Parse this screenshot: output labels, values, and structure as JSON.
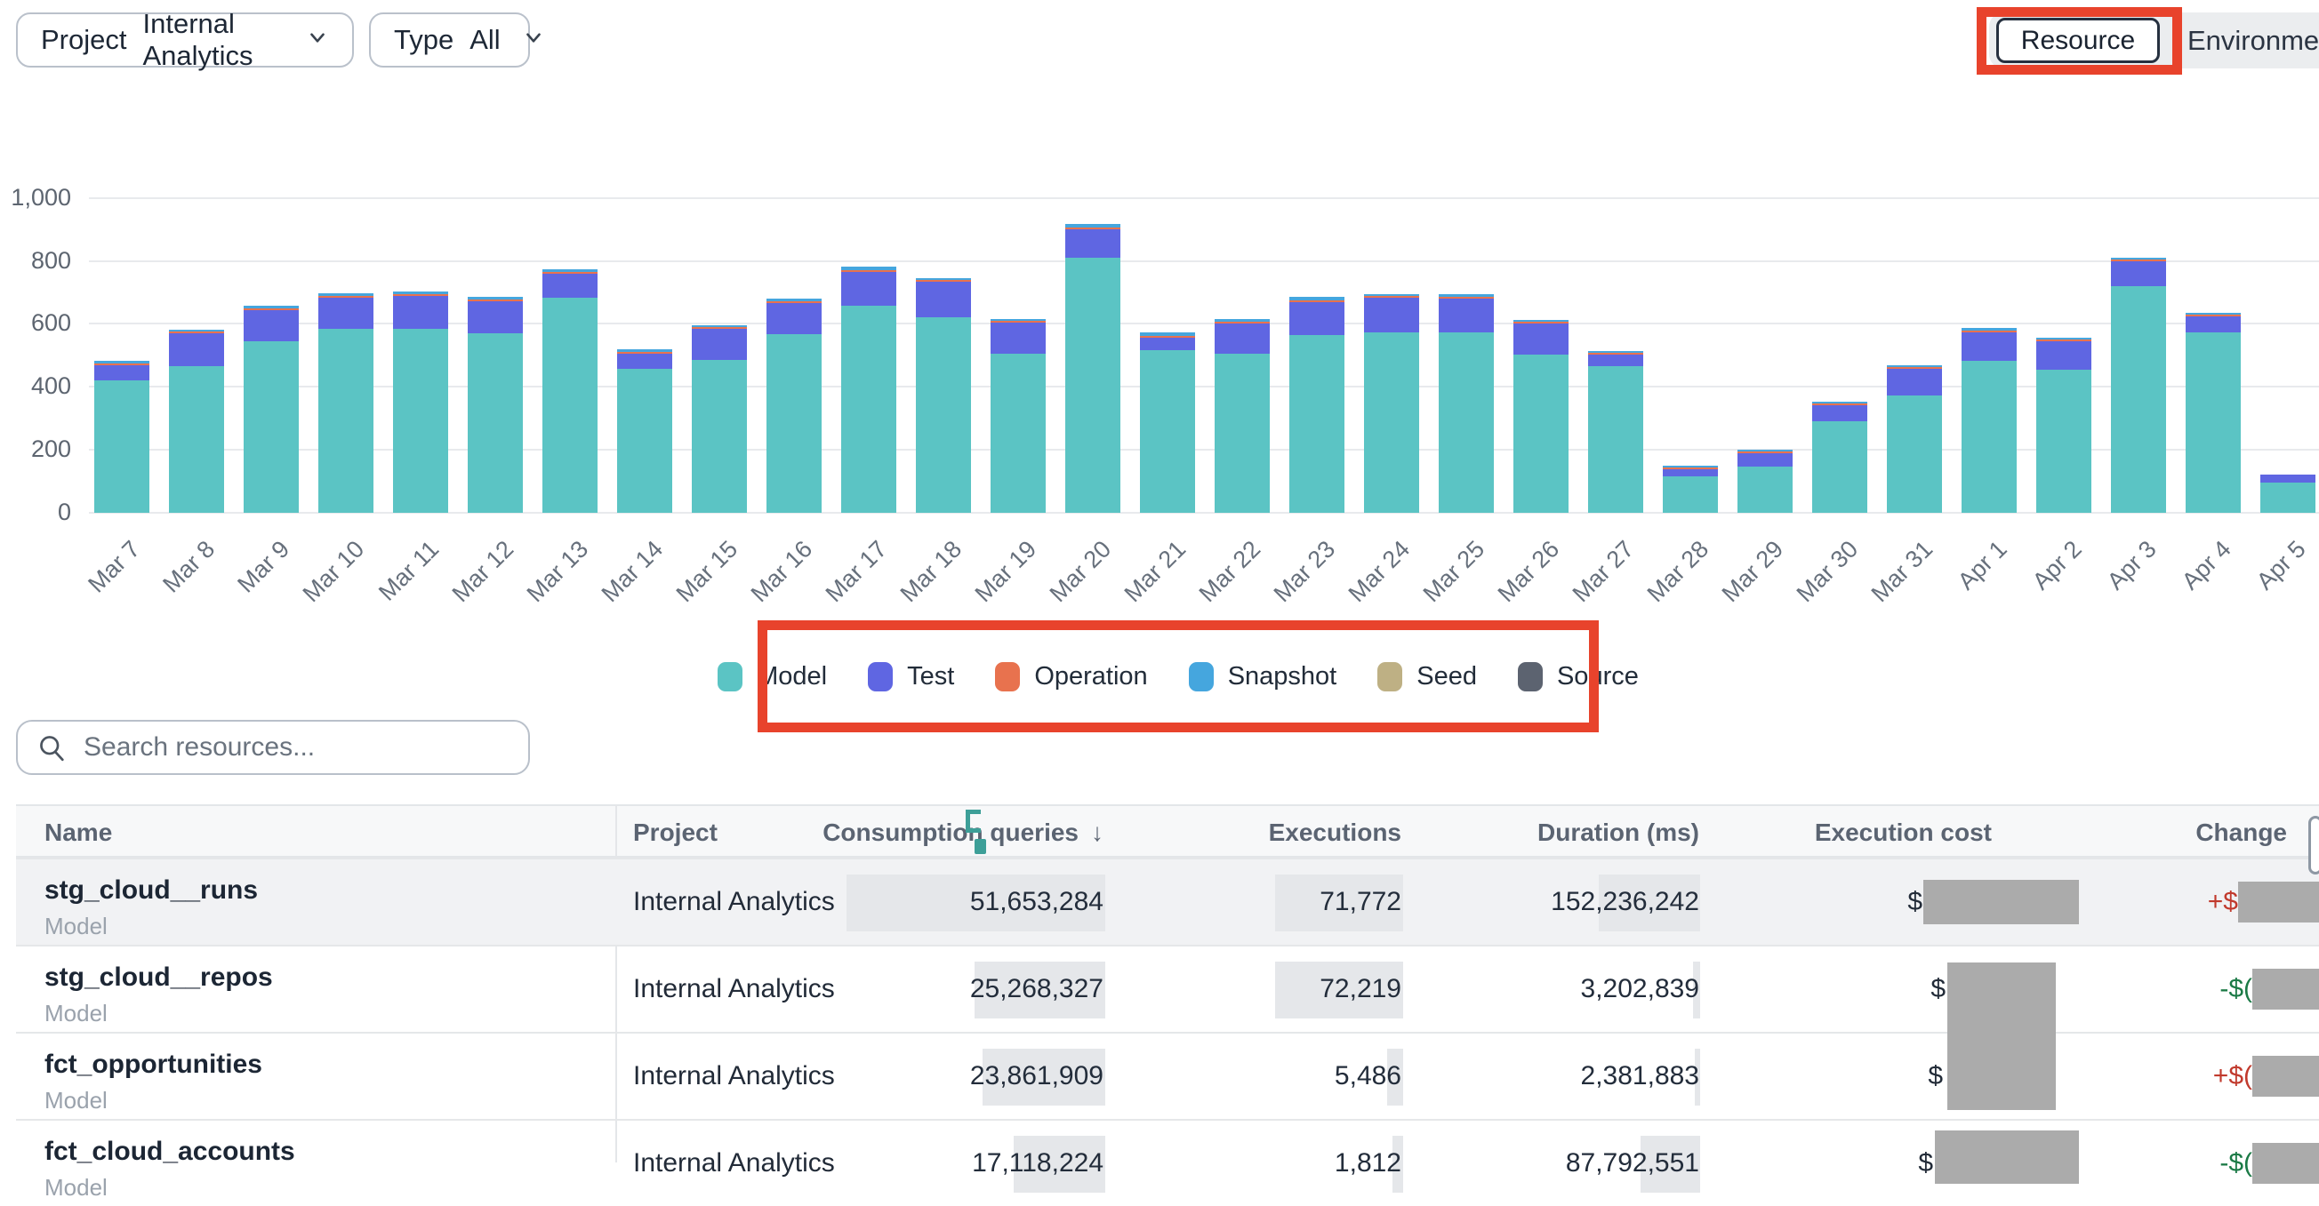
{
  "toolbar": {
    "project_label": "Project",
    "project_value": "Internal Analytics",
    "type_label": "Type",
    "type_value": "All",
    "view_toggle": {
      "resource": "Resource",
      "environment": "Environment"
    }
  },
  "chart_data": {
    "type": "bar",
    "stacked": true,
    "title": "",
    "xlabel": "",
    "ylabel": "",
    "ylim": [
      0,
      1000
    ],
    "grid": true,
    "legend_position": "bottom",
    "yticks": [
      0,
      200,
      400,
      600,
      800,
      1000
    ],
    "ytick_labels": [
      "0",
      "200",
      "400",
      "600",
      "800",
      "1,000"
    ],
    "categories": [
      "Mar 7",
      "Mar 8",
      "Mar 9",
      "Mar 10",
      "Mar 11",
      "Mar 12",
      "Mar 13",
      "Mar 14",
      "Mar 15",
      "Mar 16",
      "Mar 17",
      "Mar 18",
      "Mar 19",
      "Mar 20",
      "Mar 21",
      "Mar 22",
      "Mar 23",
      "Mar 24",
      "Mar 25",
      "Mar 26",
      "Mar 27",
      "Mar 28",
      "Mar 29",
      "Mar 30",
      "Mar 31",
      "Apr 1",
      "Apr 2",
      "Apr 3",
      "Apr 4",
      "Apr 5"
    ],
    "series": [
      {
        "name": "Model",
        "color": "#5bc4c4",
        "values": [
          420,
          466,
          546,
          584,
          584,
          570,
          684,
          457,
          485,
          568,
          659,
          622,
          505,
          811,
          516,
          505,
          565,
          573,
          572,
          502,
          466,
          115,
          148,
          290,
          374,
          483,
          455,
          719,
          574,
          96
        ]
      },
      {
        "name": "Test",
        "color": "#5f66e2",
        "values": [
          50,
          105,
          97,
          100,
          106,
          101,
          75,
          49,
          100,
          97,
          107,
          111,
          100,
          89,
          39,
          96,
          104,
          109,
          107,
          99,
          37,
          22,
          40,
          52,
          82,
          89,
          91,
          80,
          50,
          26
        ]
      },
      {
        "name": "Operation",
        "color": "#e8724e",
        "values": [
          2,
          2,
          2,
          2,
          2,
          2,
          2,
          2,
          1,
          2,
          2,
          2,
          2,
          2,
          2,
          2,
          2,
          3,
          2,
          2,
          1,
          1,
          2,
          1,
          1,
          2,
          1,
          2,
          1,
          0
        ]
      },
      {
        "name": "Snapshot",
        "color": "#45a6de",
        "values": [
          6,
          5,
          10,
          9,
          8,
          10,
          9,
          8,
          2,
          9,
          10,
          2,
          3,
          12,
          13,
          10,
          10,
          6,
          9,
          5,
          2,
          3,
          3,
          3,
          2,
          10,
          4,
          4,
          4,
          0
        ]
      },
      {
        "name": "Seed",
        "color": "#beb084",
        "values": [
          0,
          0,
          0,
          0,
          0,
          0,
          0,
          0,
          0,
          0,
          0,
          0,
          0,
          0,
          0,
          0,
          0,
          0,
          0,
          0,
          0,
          0,
          0,
          0,
          0,
          0,
          0,
          0,
          0,
          0
        ]
      },
      {
        "name": "Source",
        "color": "#5c6370",
        "values": [
          0,
          0,
          0,
          0,
          0,
          0,
          0,
          0,
          0,
          0,
          0,
          0,
          0,
          0,
          0,
          0,
          0,
          0,
          0,
          0,
          0,
          0,
          0,
          0,
          0,
          0,
          0,
          0,
          0,
          0
        ]
      }
    ],
    "legend": [
      "Model",
      "Test",
      "Operation",
      "Snapshot",
      "Seed",
      "Source"
    ]
  },
  "search": {
    "placeholder": "Search resources..."
  },
  "table": {
    "sort_arrow": "↓",
    "sort": {
      "column": "Consumption queries",
      "direction": "desc"
    },
    "columns": [
      {
        "label": "Name"
      },
      {
        "label": "Project"
      },
      {
        "label": "Consumption queries"
      },
      {
        "label": "Executions"
      },
      {
        "label": "Duration (ms)"
      },
      {
        "label": "Execution cost"
      },
      {
        "label": "Change"
      }
    ],
    "rows": [
      {
        "name": "stg_cloud__runs",
        "type": "Model",
        "project": "Internal Analytics",
        "consumption_queries": "51,653,284",
        "executions": "71,772",
        "duration_ms": "152,236,242",
        "cost_prefix": "$",
        "change_prefix": "+$",
        "change_sign": "positive"
      },
      {
        "name": "stg_cloud__repos",
        "type": "Model",
        "project": "Internal Analytics",
        "consumption_queries": "25,268,327",
        "executions": "72,219",
        "duration_ms": "3,202,839",
        "cost_prefix": "$",
        "change_prefix": "-$(",
        "change_sign": "negative"
      },
      {
        "name": "fct_opportunities",
        "type": "Model",
        "project": "Internal Analytics",
        "consumption_queries": "23,861,909",
        "executions": "5,486",
        "duration_ms": "2,381,883",
        "cost_prefix": "$",
        "change_prefix": "+$(",
        "change_sign": "positive"
      },
      {
        "name": "fct_cloud_accounts",
        "type": "Model",
        "project": "Internal Analytics",
        "consumption_queries": "17,118,224",
        "executions": "1,812",
        "duration_ms": "87,792,551",
        "cost_prefix": "$",
        "change_prefix": "-$(",
        "change_sign": "negative"
      }
    ]
  },
  "annotations": {
    "highlight_box_color": "#e8432c",
    "redaction_color": "#ababab"
  }
}
